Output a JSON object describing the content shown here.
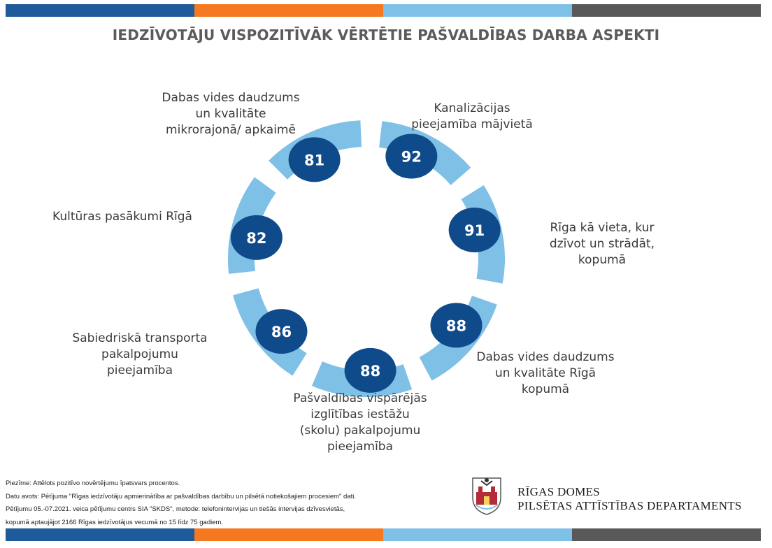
{
  "title": "IEDZĪVOTĀJU VISPOZITĪVĀK VĒRTĒTIE PAŠVALDĪBAS DARBA ASPEKTI",
  "colors": {
    "stripe": [
      "#1f5a9a",
      "#f47920",
      "#7fc0e6",
      "#595959"
    ],
    "segment": "#7fc0e6",
    "bubble": "#0f4a8a",
    "bubble_text": "#ffffff"
  },
  "chart_data": {
    "type": "donut",
    "unit": "%",
    "items": [
      {
        "label": [
          "Kanalizācijas",
          "pieejamība mājvietā"
        ],
        "value": 92
      },
      {
        "label": [
          "Rīga kā vieta, kur",
          "dzīvot un strādāt,",
          "kopumā"
        ],
        "value": 91
      },
      {
        "label": [
          "Dabas vides daudzums",
          "un kvalitāte Rīgā",
          "kopumā"
        ],
        "value": 88
      },
      {
        "label": [
          "Pašvaldības vispārējās",
          "izglītības iestāžu",
          "(skolu) pakalpojumu",
          "pieejamība"
        ],
        "value": 88
      },
      {
        "label": [
          "Sabiedriskā transporta",
          "pakalpojumu",
          "pieejamība"
        ],
        "value": 86
      },
      {
        "label": [
          "Kultūras pasākumi Rīgā"
        ],
        "value": 82
      },
      {
        "label": [
          "Dabas vides  daudzums",
          "un kvalitāte",
          "mikrorajonā/ apkaimē"
        ],
        "value": 81
      }
    ]
  },
  "footnotes": [
    "Piezīme: Attēlots pozitīvo novērtējumu īpatsvars procentos.",
    "Datu avots: Pētījuma \"Rīgas iedzīvotāju apmierinātība ar pašvaldības darbību un pilsētā notiekošajiem procesiem\" dati.",
    "Pētījumu 05.-07.2021. veica pētījumu centrs SIA \"SKDS\", metode: telefonintervijas un tiešās intervijas dzīvesvietās,",
    "kopumā aptaujājot 2166 Rīgas iedzīvotājus vecumā no 15 līdz 75 gadiem."
  ],
  "brand": {
    "line1": "RĪGAS DOMES",
    "line2": "PILSĒTAS ATTĪSTĪBAS DEPARTAMENTS",
    "logo": "riga-coat-of-arms-icon"
  }
}
